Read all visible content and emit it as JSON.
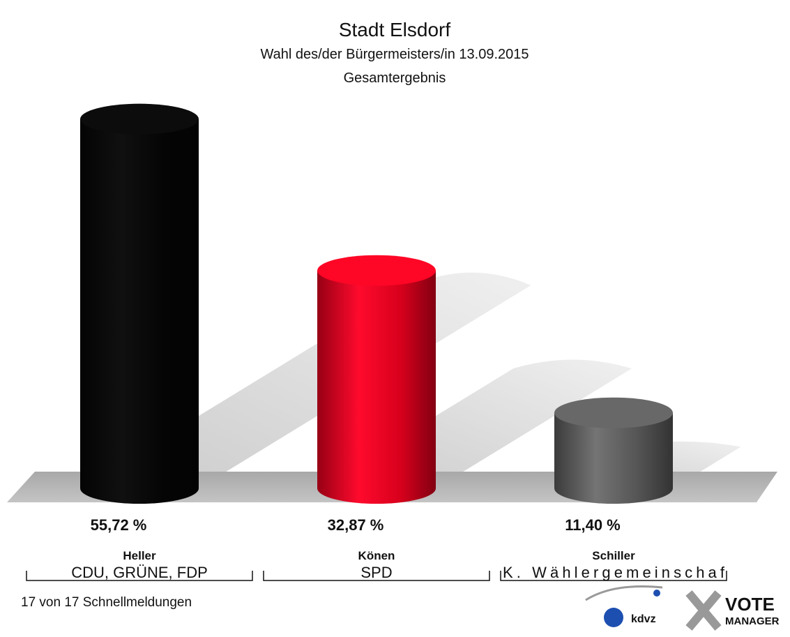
{
  "chart_data": {
    "type": "bar",
    "title": "Stadt Elsdorf",
    "subtitle": "Wahl des/der Bürgermeisters/in 13.09.2015",
    "subtitle2": "Gesamtergebnis",
    "categories": [
      "Heller",
      "Könen",
      "Schiller"
    ],
    "parties": [
      "CDU, GRÜNE, FDP",
      "SPD",
      "K. Wählergemeinschaf"
    ],
    "values": [
      55.72,
      32.87,
      11.4
    ],
    "value_labels": [
      "55,72 %",
      "32,87 %",
      "11,40 %"
    ],
    "colors": [
      "#050505",
      "#d8001c",
      "#555555"
    ],
    "footer": "17 von 17 Schnellmeldungen",
    "logo": [
      "kdvz",
      "VOTE",
      "MANAGER"
    ]
  }
}
